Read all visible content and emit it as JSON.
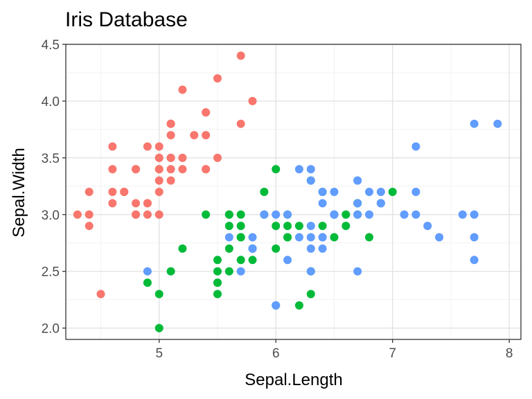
{
  "chart_data": {
    "type": "scatter",
    "title": "Iris Database",
    "xlabel": "Sepal.Length",
    "ylabel": "Sepal.Width",
    "xlim": [
      4.2,
      8.1
    ],
    "ylim": [
      1.9,
      4.5
    ],
    "x_ticks": [
      5,
      6,
      7,
      8
    ],
    "y_ticks": [
      2.0,
      2.5,
      3.0,
      3.5,
      4.0,
      4.5
    ],
    "grid": true,
    "legend": "none",
    "series": [
      {
        "color": "#F8766D",
        "points": [
          [
            5.1,
            3.5
          ],
          [
            4.9,
            3.0
          ],
          [
            4.7,
            3.2
          ],
          [
            4.6,
            3.1
          ],
          [
            5.0,
            3.6
          ],
          [
            5.4,
            3.9
          ],
          [
            4.6,
            3.4
          ],
          [
            5.0,
            3.4
          ],
          [
            4.4,
            2.9
          ],
          [
            4.9,
            3.1
          ],
          [
            5.4,
            3.7
          ],
          [
            4.8,
            3.4
          ],
          [
            4.8,
            3.0
          ],
          [
            4.3,
            3.0
          ],
          [
            5.8,
            4.0
          ],
          [
            5.7,
            4.4
          ],
          [
            5.4,
            3.9
          ],
          [
            5.1,
            3.5
          ],
          [
            5.7,
            3.8
          ],
          [
            5.1,
            3.8
          ],
          [
            5.4,
            3.4
          ],
          [
            5.1,
            3.7
          ],
          [
            4.6,
            3.6
          ],
          [
            5.1,
            3.3
          ],
          [
            4.8,
            3.4
          ],
          [
            5.0,
            3.0
          ],
          [
            5.0,
            3.4
          ],
          [
            5.2,
            3.5
          ],
          [
            5.2,
            3.4
          ],
          [
            4.7,
            3.2
          ],
          [
            4.8,
            3.1
          ],
          [
            5.4,
            3.4
          ],
          [
            5.2,
            4.1
          ],
          [
            5.5,
            4.2
          ],
          [
            4.9,
            3.1
          ],
          [
            5.0,
            3.2
          ],
          [
            5.5,
            3.5
          ],
          [
            4.9,
            3.6
          ],
          [
            4.4,
            3.0
          ],
          [
            5.1,
            3.4
          ],
          [
            5.0,
            3.5
          ],
          [
            4.5,
            2.3
          ],
          [
            4.4,
            3.2
          ],
          [
            5.0,
            3.5
          ],
          [
            5.1,
            3.8
          ],
          [
            4.8,
            3.0
          ],
          [
            5.1,
            3.8
          ],
          [
            4.6,
            3.2
          ],
          [
            5.3,
            3.7
          ],
          [
            5.0,
            3.3
          ]
        ]
      },
      {
        "color": "#00BA38",
        "points": [
          [
            7.0,
            3.2
          ],
          [
            6.4,
            3.2
          ],
          [
            6.9,
            3.1
          ],
          [
            5.5,
            2.3
          ],
          [
            6.5,
            2.8
          ],
          [
            5.7,
            2.8
          ],
          [
            6.3,
            3.3
          ],
          [
            4.9,
            2.4
          ],
          [
            6.6,
            2.9
          ],
          [
            5.2,
            2.7
          ],
          [
            5.0,
            2.0
          ],
          [
            5.9,
            3.0
          ],
          [
            6.0,
            2.2
          ],
          [
            6.1,
            2.9
          ],
          [
            5.6,
            2.9
          ],
          [
            6.7,
            3.1
          ],
          [
            5.6,
            3.0
          ],
          [
            5.8,
            2.7
          ],
          [
            6.2,
            2.2
          ],
          [
            5.6,
            2.5
          ],
          [
            5.9,
            3.2
          ],
          [
            6.1,
            2.8
          ],
          [
            6.3,
            2.5
          ],
          [
            6.1,
            2.8
          ],
          [
            6.4,
            2.9
          ],
          [
            6.6,
            3.0
          ],
          [
            6.8,
            2.8
          ],
          [
            6.7,
            3.0
          ],
          [
            6.0,
            2.9
          ],
          [
            5.7,
            2.6
          ],
          [
            5.5,
            2.4
          ],
          [
            5.5,
            2.4
          ],
          [
            5.8,
            2.7
          ],
          [
            6.0,
            2.7
          ],
          [
            5.4,
            3.0
          ],
          [
            6.0,
            3.4
          ],
          [
            6.7,
            3.1
          ],
          [
            6.3,
            2.3
          ],
          [
            5.6,
            3.0
          ],
          [
            5.5,
            2.5
          ],
          [
            5.5,
            2.6
          ],
          [
            6.1,
            3.0
          ],
          [
            5.8,
            2.6
          ],
          [
            5.0,
            2.3
          ],
          [
            5.6,
            2.7
          ],
          [
            5.7,
            3.0
          ],
          [
            5.7,
            2.9
          ],
          [
            6.2,
            2.9
          ],
          [
            5.1,
            2.5
          ],
          [
            5.7,
            2.8
          ]
        ]
      },
      {
        "color": "#619CFF",
        "points": [
          [
            6.3,
            3.3
          ],
          [
            5.8,
            2.7
          ],
          [
            7.1,
            3.0
          ],
          [
            6.3,
            2.9
          ],
          [
            6.5,
            3.0
          ],
          [
            7.6,
            3.0
          ],
          [
            4.9,
            2.5
          ],
          [
            7.3,
            2.9
          ],
          [
            6.7,
            2.5
          ],
          [
            7.2,
            3.6
          ],
          [
            6.5,
            3.2
          ],
          [
            6.4,
            2.7
          ],
          [
            6.8,
            3.0
          ],
          [
            5.7,
            2.5
          ],
          [
            5.8,
            2.8
          ],
          [
            6.4,
            3.2
          ],
          [
            6.5,
            3.0
          ],
          [
            7.7,
            3.8
          ],
          [
            7.7,
            2.6
          ],
          [
            6.0,
            2.2
          ],
          [
            6.9,
            3.2
          ],
          [
            5.6,
            2.8
          ],
          [
            7.7,
            2.8
          ],
          [
            6.3,
            2.7
          ],
          [
            6.7,
            3.3
          ],
          [
            7.2,
            3.2
          ],
          [
            6.2,
            2.8
          ],
          [
            6.1,
            3.0
          ],
          [
            6.4,
            2.8
          ],
          [
            7.2,
            3.0
          ],
          [
            7.4,
            2.8
          ],
          [
            7.9,
            3.8
          ],
          [
            6.4,
            2.8
          ],
          [
            6.3,
            2.8
          ],
          [
            6.1,
            2.6
          ],
          [
            7.7,
            3.0
          ],
          [
            6.3,
            3.4
          ],
          [
            6.4,
            3.1
          ],
          [
            6.0,
            3.0
          ],
          [
            6.9,
            3.1
          ],
          [
            6.7,
            3.1
          ],
          [
            6.9,
            3.1
          ],
          [
            5.8,
            2.7
          ],
          [
            6.8,
            3.2
          ],
          [
            6.7,
            3.3
          ],
          [
            6.7,
            3.0
          ],
          [
            6.3,
            2.5
          ],
          [
            6.5,
            3.0
          ],
          [
            6.2,
            3.4
          ],
          [
            5.9,
            3.0
          ]
        ]
      }
    ]
  }
}
